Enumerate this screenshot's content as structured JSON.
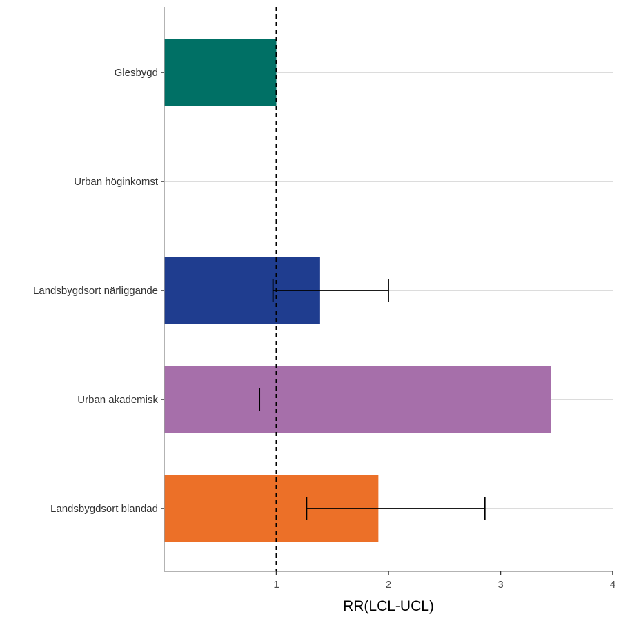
{
  "chart_data": {
    "type": "bar",
    "orientation": "horizontal",
    "xlabel": "RR(LCL-UCL)",
    "ylabel": "",
    "xlim": [
      0,
      4
    ],
    "xticks": [
      1,
      2,
      3,
      4
    ],
    "reference_line": 1,
    "grid": "horizontal major lines only",
    "legend": "none",
    "categories": [
      "Glesbygd",
      "Urban höginkomst",
      "Landsbygdsort närliggande",
      "Urban akademisk",
      "Landsbygdsort blandad"
    ],
    "values": [
      1.0,
      null,
      1.39,
      3.45,
      1.91
    ],
    "lower": [
      null,
      null,
      0.97,
      0.85,
      1.27
    ],
    "upper": [
      null,
      null,
      2.0,
      null,
      2.86
    ],
    "colors": [
      "#007065",
      null,
      "#1f3d8f",
      "#a66faa",
      "#ec7028"
    ]
  }
}
